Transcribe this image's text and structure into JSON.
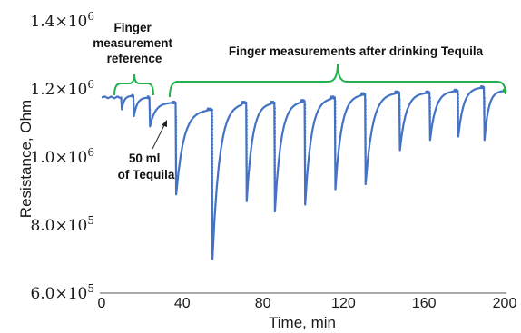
{
  "chart_data": {
    "type": "line",
    "xlabel": "Time, min",
    "ylabel": "Resistance, Ohm",
    "xlim": [
      0,
      200
    ],
    "ylim": [
      600000,
      1400000
    ],
    "x_ticks": [
      "0",
      "40",
      "80",
      "120",
      "160",
      "200"
    ],
    "x_tick_values": [
      0,
      40,
      80,
      120,
      160,
      200
    ],
    "y_ticks": [
      "6.0×10",
      "8.0×10",
      "1.0×10",
      "1.2×10",
      "1.4×10"
    ],
    "y_tick_exponents": [
      "5",
      "5",
      "6",
      "6",
      "6"
    ],
    "y_tick_values": [
      600000,
      800000,
      1000000,
      1200000,
      1400000
    ],
    "grid": false,
    "line_color": "#4472c4",
    "brace_color": "#22b14c",
    "series": [
      {
        "dips": [
          {
            "t": 10,
            "min": 1140000,
            "base": 1180000
          },
          {
            "t": 16,
            "min": 1120000,
            "base": 1175000
          },
          {
            "t": 24,
            "min": 1090000,
            "base": 1160000
          },
          {
            "t": 37,
            "min": 890000,
            "base": 1140000
          },
          {
            "t": 55,
            "min": 700000,
            "base": 1160000
          },
          {
            "t": 72,
            "min": 870000,
            "base": 1160000
          },
          {
            "t": 86,
            "min": 840000,
            "base": 1165000
          },
          {
            "t": 101,
            "min": 860000,
            "base": 1175000
          },
          {
            "t": 116,
            "min": 905000,
            "base": 1185000
          },
          {
            "t": 131,
            "min": 920000,
            "base": 1190000
          },
          {
            "t": 148,
            "min": 1020000,
            "base": 1190000
          },
          {
            "t": 163,
            "min": 1050000,
            "base": 1195000
          },
          {
            "t": 177,
            "min": 1060000,
            "base": 1205000
          },
          {
            "t": 190,
            "min": 1050000,
            "base": 1195000
          }
        ],
        "start": {
          "t": 0,
          "value": 1175000
        },
        "end": {
          "t": 200,
          "value": 1195000
        }
      }
    ],
    "annotations": [
      {
        "lines": [
          "Finger",
          "measurement",
          "reference"
        ]
      },
      {
        "lines": [
          "Finger measurements after drinking Tequila"
        ]
      },
      {
        "lines": [
          "50 ml",
          "of Tequila"
        ]
      }
    ]
  }
}
